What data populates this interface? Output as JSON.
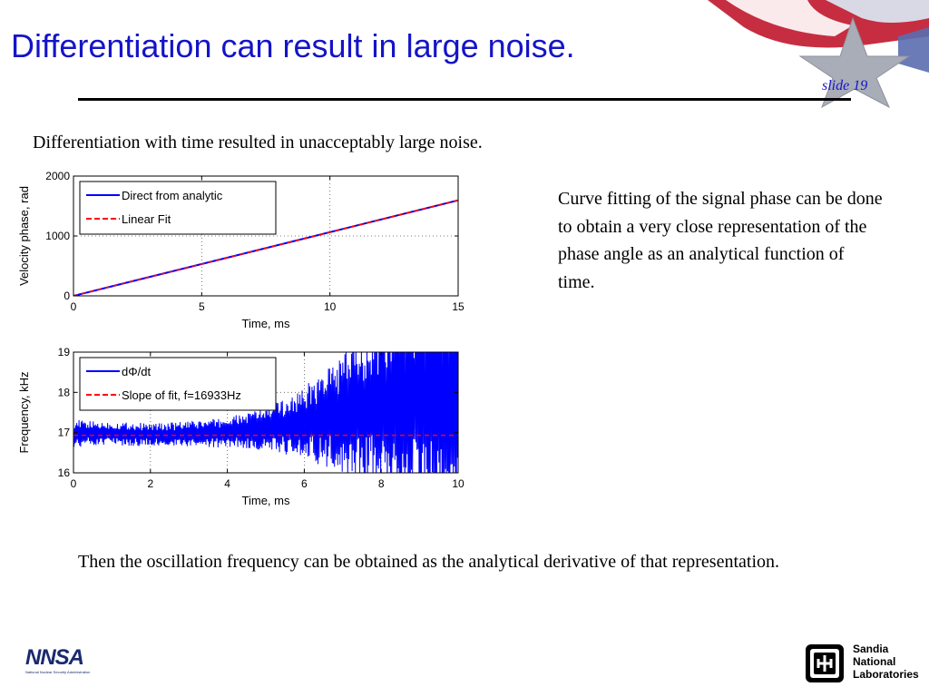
{
  "slide": {
    "title": "Differentiation can result in large noise.",
    "number_label": "slide 19",
    "intro": "Differentiation with time resulted in unacceptably large noise.",
    "side_text": "Curve fitting of the signal phase can be done to obtain a very close representation of the phase angle as an analytical function of time.",
    "bottom_text": "Then the oscillation frequency can be obtained as the analytical derivative of that representation."
  },
  "logos": {
    "nnsa_letters": "NNSA",
    "nnsa_caption": "National Nuclear Security Administration",
    "sandia_line1": "Sandia",
    "sandia_line2": "National",
    "sandia_line3": "Laboratories"
  },
  "colors": {
    "title": "#1414c8",
    "series_blue": "#0000ff",
    "series_red": "#ff0000"
  },
  "chart_data": [
    {
      "type": "line",
      "xlabel": "Time, ms",
      "ylabel": "Velocity phase, rad",
      "xlim": [
        0,
        15
      ],
      "ylim": [
        0,
        2000
      ],
      "xticks": [
        0,
        5,
        10,
        15
      ],
      "yticks": [
        0,
        1000,
        2000
      ],
      "grid": true,
      "legend_position": "top-left",
      "series": [
        {
          "name": "Direct from analytic",
          "color": "#0000ff",
          "style": "solid",
          "x": [
            0,
            15
          ],
          "y": [
            0,
            1595
          ]
        },
        {
          "name": "Linear Fit",
          "color": "#ff0000",
          "style": "dashed",
          "x": [
            0,
            15
          ],
          "y": [
            0,
            1595
          ]
        }
      ]
    },
    {
      "type": "line",
      "xlabel": "Time, ms",
      "ylabel": "Frequency, kHz",
      "xlim": [
        0,
        10
      ],
      "ylim": [
        16,
        19
      ],
      "xticks": [
        0,
        2,
        4,
        6,
        8,
        10
      ],
      "yticks": [
        16,
        17,
        18,
        19
      ],
      "grid": true,
      "legend_position": "top-left",
      "series": [
        {
          "name": "dΦ/dt",
          "color": "#0000ff",
          "style": "solid",
          "x": [
            0,
            0.5,
            1,
            1.5,
            2,
            2.5,
            3,
            3.5,
            4,
            4.5,
            5,
            5.5,
            6,
            6.5,
            7,
            7.5,
            8,
            8.5,
            9,
            9.5,
            10
          ],
          "center": [
            16.98,
            16.98,
            16.97,
            16.96,
            16.95,
            16.95,
            16.96,
            16.98,
            17.0,
            17.05,
            17.1,
            17.15,
            17.25,
            17.35,
            17.45,
            17.6,
            17.7,
            17.8,
            17.85,
            17.9,
            17.9
          ],
          "amplitude": [
            0.35,
            0.3,
            0.3,
            0.3,
            0.28,
            0.3,
            0.32,
            0.35,
            0.38,
            0.45,
            0.55,
            0.7,
            0.9,
            1.2,
            1.5,
            1.8,
            2.2,
            2.5,
            2.8,
            3.0,
            3.0
          ]
        },
        {
          "name": "Slope of fit, f=16933Hz",
          "color": "#ff0000",
          "style": "dashed",
          "x": [
            0,
            10
          ],
          "y": [
            16.933,
            16.933
          ]
        }
      ]
    }
  ]
}
